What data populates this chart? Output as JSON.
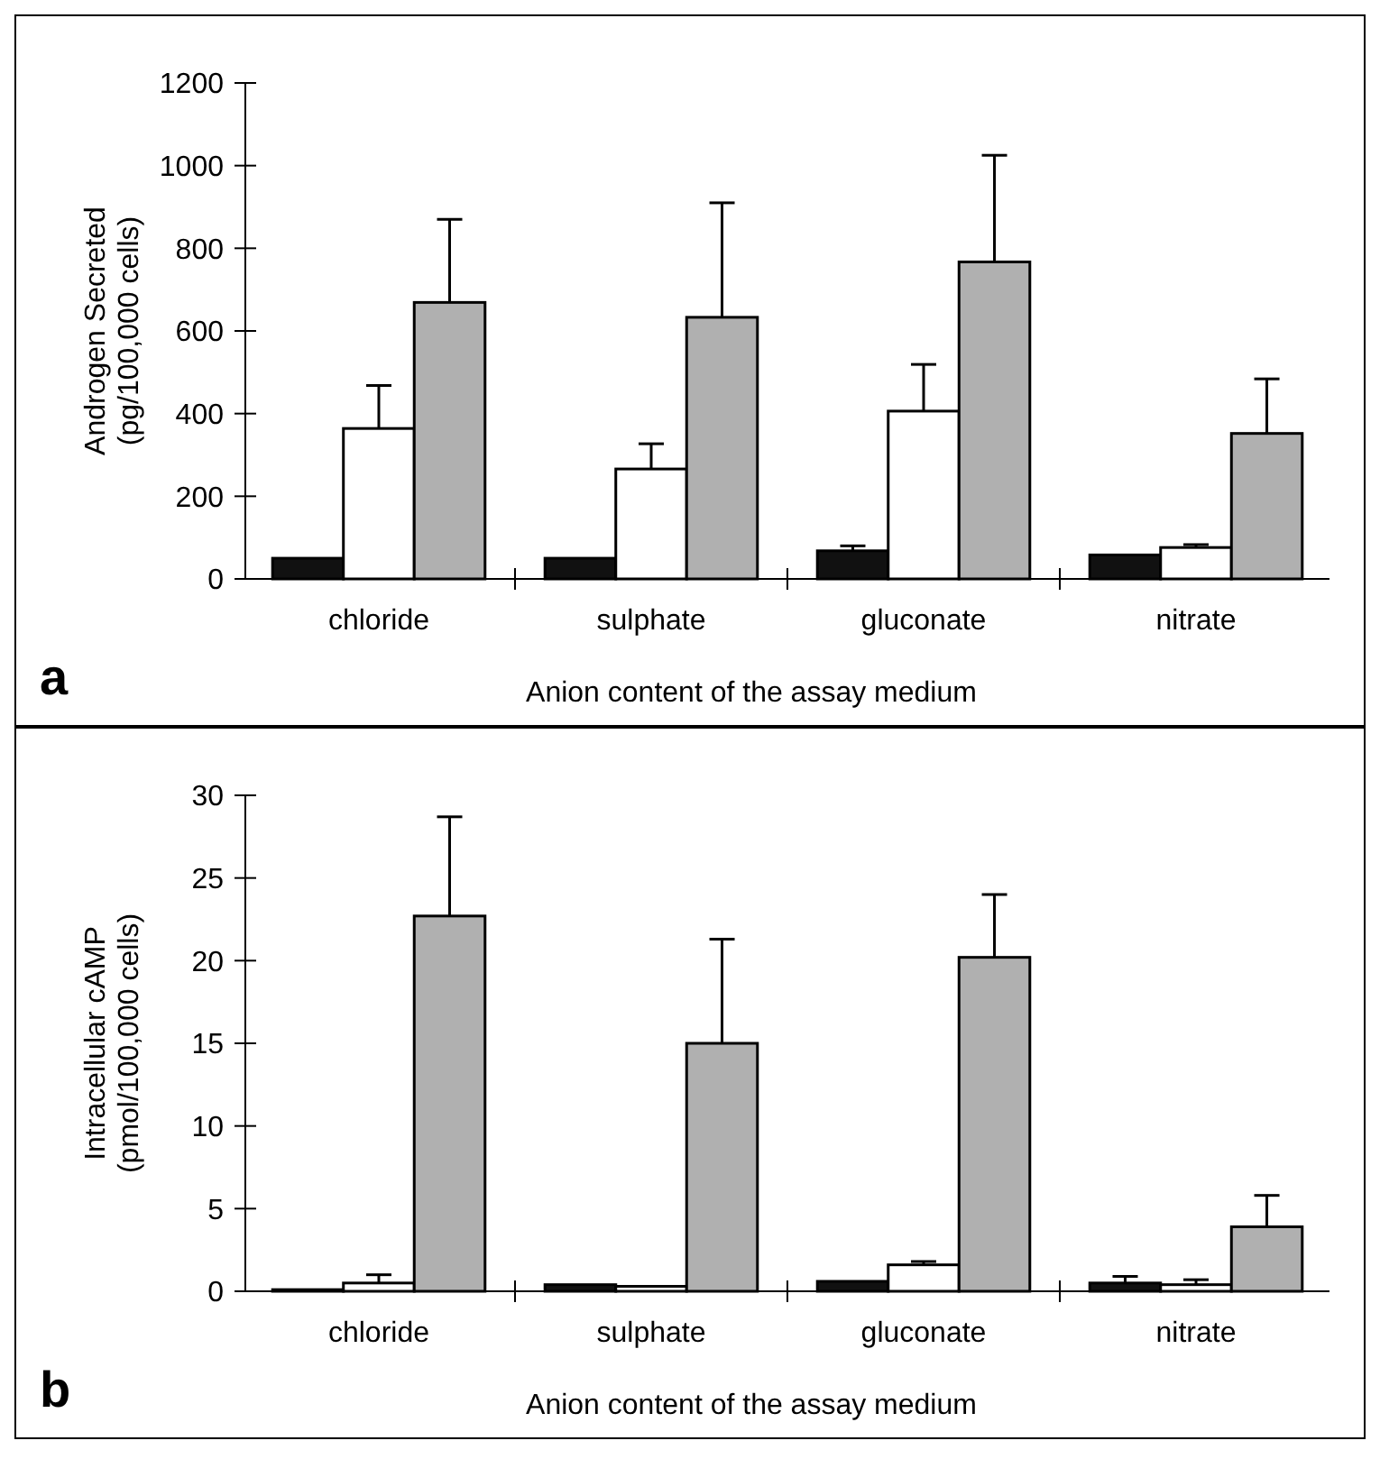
{
  "chart_data": [
    {
      "type": "bar",
      "categories": [
        "chloride",
        "sulphate",
        "gluconate",
        "nitrate"
      ],
      "xlabel": "Anion content of the assay medium",
      "ylabel": "Androgen Secreted\n(pg/100,000 cells)",
      "ylim": [
        0,
        1200
      ],
      "yticks": [
        0,
        200,
        400,
        600,
        800,
        1000,
        1200
      ],
      "annotations": [
        "a"
      ],
      "series": [
        {
          "color": "#111111",
          "values": [
            50,
            50,
            68,
            58
          ],
          "errors": [
            null,
            null,
            [
              68,
              80
            ],
            null
          ]
        },
        {
          "color": "#ffffff",
          "values": [
            364,
            266,
            406,
            76
          ],
          "errors": [
            [
              364,
              468
            ],
            [
              266,
              327
            ],
            [
              406,
              519
            ],
            [
              76,
              83
            ]
          ]
        },
        {
          "color": "#b0b0b0",
          "values": [
            669,
            633,
            767,
            352
          ],
          "errors": [
            [
              669,
              870
            ],
            [
              633,
              910
            ],
            [
              767,
              1025
            ],
            [
              352,
              484
            ]
          ]
        }
      ]
    },
    {
      "type": "bar",
      "categories": [
        "chloride",
        "sulphate",
        "gluconate",
        "nitrate"
      ],
      "xlabel": "Anion content of the assay medium",
      "ylabel": "Intracellular cAMP\n(pmol/100,000 cells)",
      "ylim": [
        0,
        30
      ],
      "yticks": [
        0,
        5,
        10,
        15,
        20,
        25,
        30
      ],
      "annotations": [
        "b"
      ],
      "series": [
        {
          "color": "#111111",
          "values": [
            0.1,
            0.4,
            0.6,
            0.5
          ],
          "errors": [
            null,
            null,
            null,
            [
              0.5,
              0.9
            ]
          ]
        },
        {
          "color": "#ffffff",
          "values": [
            0.5,
            0.3,
            1.6,
            0.4
          ],
          "errors": [
            [
              0.5,
              1.0
            ],
            null,
            [
              1.6,
              1.8
            ],
            [
              0.4,
              0.7
            ]
          ]
        },
        {
          "color": "#b0b0b0",
          "values": [
            22.7,
            15.0,
            20.2,
            3.9
          ],
          "errors": [
            [
              22.7,
              28.7
            ],
            [
              15.0,
              21.3
            ],
            [
              20.2,
              24.0
            ],
            [
              3.9,
              5.8
            ]
          ]
        }
      ]
    }
  ]
}
